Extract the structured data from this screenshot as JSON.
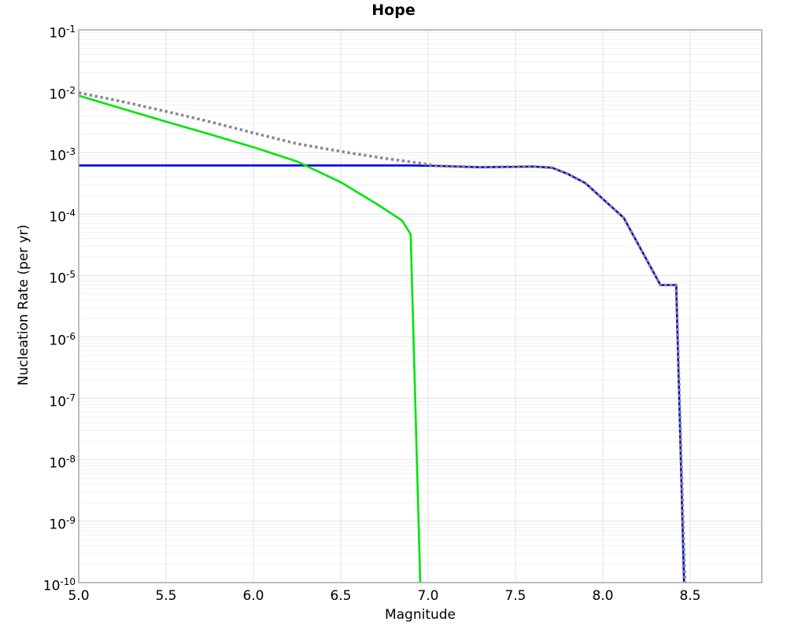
{
  "chart_data": {
    "type": "line",
    "title": "Hope",
    "xlabel": "Magnitude",
    "ylabel": "Nucleation Rate (per yr)",
    "xlim": [
      5.0,
      8.91
    ],
    "y_scale": "log",
    "ylim_exp": [
      -10,
      -1
    ],
    "x_ticks": [
      5.0,
      5.5,
      6.0,
      6.5,
      7.0,
      7.5,
      8.0,
      8.5
    ],
    "x_tick_labels": [
      "5.0",
      "5.5",
      "6.0",
      "6.5",
      "7.0",
      "7.5",
      "8.0",
      "8.5"
    ],
    "y_ticks_exp": [
      -1,
      -2,
      -3,
      -4,
      -5,
      -6,
      -7,
      -8,
      -9,
      -10
    ],
    "y_tick_labels": [
      "10^-1",
      "10^-2",
      "10^-3",
      "10^-4",
      "10^-5",
      "10^-6",
      "10^-7",
      "10^-8",
      "10^-9",
      "10^-10"
    ],
    "grid": true,
    "legend": "none",
    "frame_color": "#a3a3a3",
    "grid_minor_color": "#f1f1f1",
    "grid_major_color": "#e3e3e3",
    "series": [
      {
        "name": "blue-solid",
        "color": "#0000dd",
        "style": "solid",
        "width": 2.6,
        "points": [
          [
            5.0,
            0.00062
          ],
          [
            6.9,
            0.00062
          ],
          [
            7.05,
            0.00061
          ],
          [
            7.3,
            0.00058
          ],
          [
            7.6,
            0.000595
          ],
          [
            7.71,
            0.00057
          ],
          [
            7.8,
            0.00045
          ],
          [
            7.9,
            0.00032
          ],
          [
            8.12,
            8.7e-05
          ],
          [
            8.33,
            7e-06
          ],
          [
            8.42,
            7e-06
          ],
          [
            8.465,
            1e-10
          ]
        ]
      },
      {
        "name": "green-solid",
        "color": "#00e408",
        "style": "solid",
        "width": 2.6,
        "points": [
          [
            5.0,
            0.0085
          ],
          [
            5.25,
            0.0052
          ],
          [
            5.5,
            0.0032
          ],
          [
            5.75,
            0.002
          ],
          [
            6.0,
            0.00123
          ],
          [
            6.25,
            0.00072
          ],
          [
            6.5,
            0.00033
          ],
          [
            6.7,
            0.00015
          ],
          [
            6.85,
            7.9e-05
          ],
          [
            6.9,
            4.7e-05
          ],
          [
            6.955,
            1e-10
          ]
        ]
      },
      {
        "name": "gray-dotted",
        "color": "#8a8a8a",
        "style": "dotted",
        "width": 3.6,
        "points": [
          [
            5.0,
            0.0095
          ],
          [
            5.25,
            0.0068
          ],
          [
            5.5,
            0.0047
          ],
          [
            5.75,
            0.0032
          ],
          [
            6.0,
            0.0021
          ],
          [
            6.25,
            0.0014
          ],
          [
            6.5,
            0.00105
          ],
          [
            6.75,
            0.00081
          ],
          [
            6.9,
            0.00071
          ],
          [
            7.05,
            0.00061
          ],
          [
            7.3,
            0.00058
          ],
          [
            7.6,
            0.000595
          ],
          [
            7.71,
            0.00057
          ],
          [
            7.8,
            0.00045
          ],
          [
            7.9,
            0.00032
          ],
          [
            8.12,
            8.7e-05
          ],
          [
            8.33,
            7e-06
          ],
          [
            8.42,
            7e-06
          ],
          [
            8.47,
            1e-10
          ]
        ]
      }
    ]
  }
}
